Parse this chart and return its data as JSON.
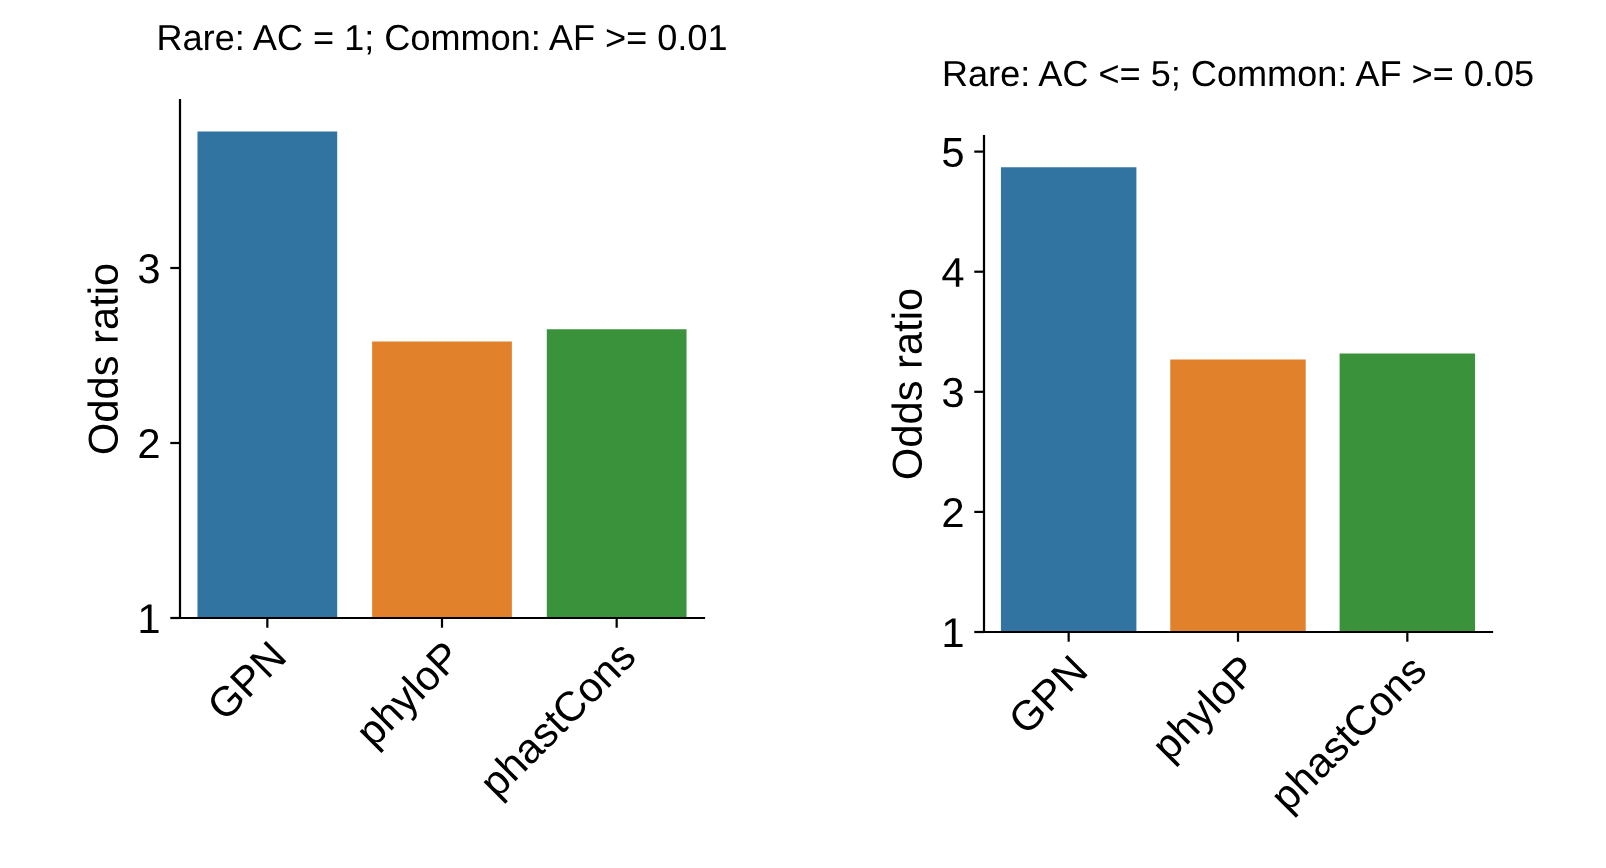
{
  "chart_data": [
    {
      "type": "bar",
      "title": "Rare: AC = 1; Common: AF >= 0.01",
      "ylabel": "Odds ratio",
      "categories": [
        "GPN",
        "phyloP",
        "phastCons"
      ],
      "values": [
        3.78,
        2.58,
        2.65
      ],
      "colors": [
        "#3274a1",
        "#e1812c",
        "#3a923a"
      ],
      "ylim": [
        1,
        3.96
      ],
      "yticks": [
        1,
        2,
        3
      ],
      "grid": false,
      "legend": false
    },
    {
      "type": "bar",
      "title": "Rare: AC <= 5; Common: AF >= 0.05",
      "ylabel": "Odds ratio",
      "categories": [
        "GPN",
        "phyloP",
        "phastCons"
      ],
      "values": [
        4.87,
        3.27,
        3.32
      ],
      "colors": [
        "#3274a1",
        "#e1812c",
        "#3a923a"
      ],
      "ylim": [
        1,
        5.13
      ],
      "yticks": [
        1,
        2,
        3,
        4,
        5
      ],
      "grid": false,
      "legend": false
    }
  ]
}
